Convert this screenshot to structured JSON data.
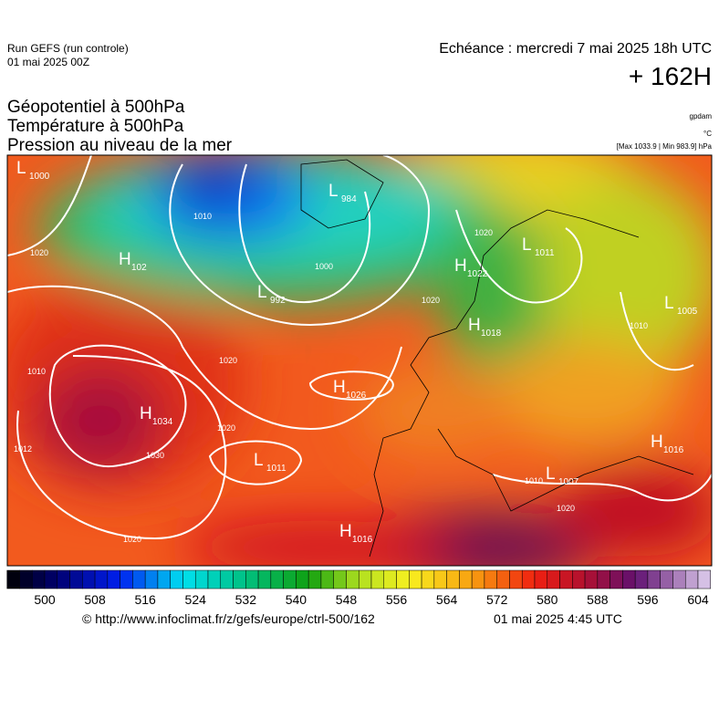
{
  "header": {
    "run": "Run GEFS (run controle)",
    "date": "01 mai 2025 00Z",
    "echeance": "Echéance : mercredi 7 mai 2025 18h UTC",
    "lead": "+ 162H"
  },
  "fields": [
    "Géopotentiel à 500hPa",
    "Température à 500hPa",
    "Pression au niveau de la mer"
  ],
  "units": [
    "gpdam",
    "°C",
    "[Max 1033.9 | Min 983.9] hPa"
  ],
  "centers": [
    {
      "symbol": "L",
      "value": "1000"
    },
    {
      "symbol": "L",
      "value": "984"
    },
    {
      "symbol": "H",
      "value": "102"
    },
    {
      "symbol": "L",
      "value": "992"
    },
    {
      "symbol": "H",
      "value": "1026"
    },
    {
      "symbol": "H",
      "value": "1034"
    },
    {
      "symbol": "L",
      "value": "1011"
    },
    {
      "symbol": "H",
      "value": "1016"
    },
    {
      "symbol": "H",
      "value": "1022"
    },
    {
      "symbol": "L",
      "value": "1011"
    },
    {
      "symbol": "L",
      "value": "1005"
    },
    {
      "symbol": "H",
      "value": "1018"
    },
    {
      "symbol": "H",
      "value": "1016"
    },
    {
      "symbol": "L",
      "value": "1007"
    }
  ],
  "contour_labels": [
    "1020",
    "1010",
    "1000",
    "1020",
    "1020",
    "1020",
    "1030",
    "1012",
    "1020",
    "1020",
    "1010",
    "1010",
    "1020",
    "1010"
  ],
  "colorbar": {
    "ticks": [
      500,
      508,
      516,
      524,
      532,
      540,
      548,
      556,
      564,
      572,
      580,
      588,
      596,
      604
    ]
  },
  "footer": {
    "url": "© http://www.infoclimat.fr/z/gefs/europe/ctrl-500/162",
    "time": "01 mai 2025  4:45 UTC"
  }
}
